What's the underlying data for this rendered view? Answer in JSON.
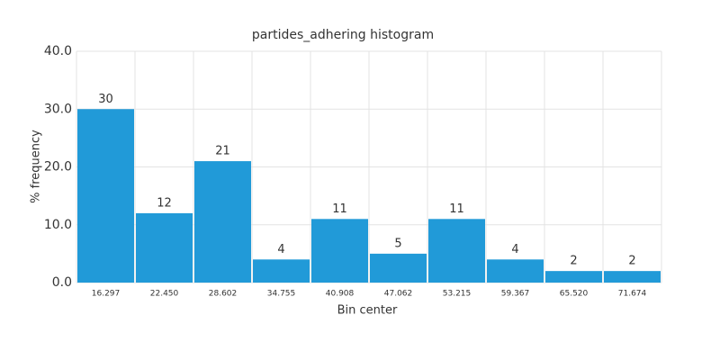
{
  "chart_data": {
    "type": "bar",
    "title": "partides_adhering histogram",
    "x_label": "Bin center",
    "y_label": "% frequency",
    "categories": [
      "16.297",
      "22.450",
      "28.602",
      "34.755",
      "40.908",
      "47.062",
      "53.215",
      "59.367",
      "65.520",
      "71.674"
    ],
    "values": [
      30,
      12,
      21,
      4,
      11,
      5,
      11,
      4,
      2,
      2
    ],
    "color": "#219ad8",
    "ylim": [
      0,
      40
    ],
    "yticks": [
      {
        "value": 0,
        "label": "0.0"
      },
      {
        "value": 10,
        "label": "10.0"
      },
      {
        "value": 20,
        "label": "20.0"
      },
      {
        "value": 30,
        "label": "30.0"
      },
      {
        "value": 40,
        "label": "40.0"
      }
    ],
    "grid": true
  }
}
